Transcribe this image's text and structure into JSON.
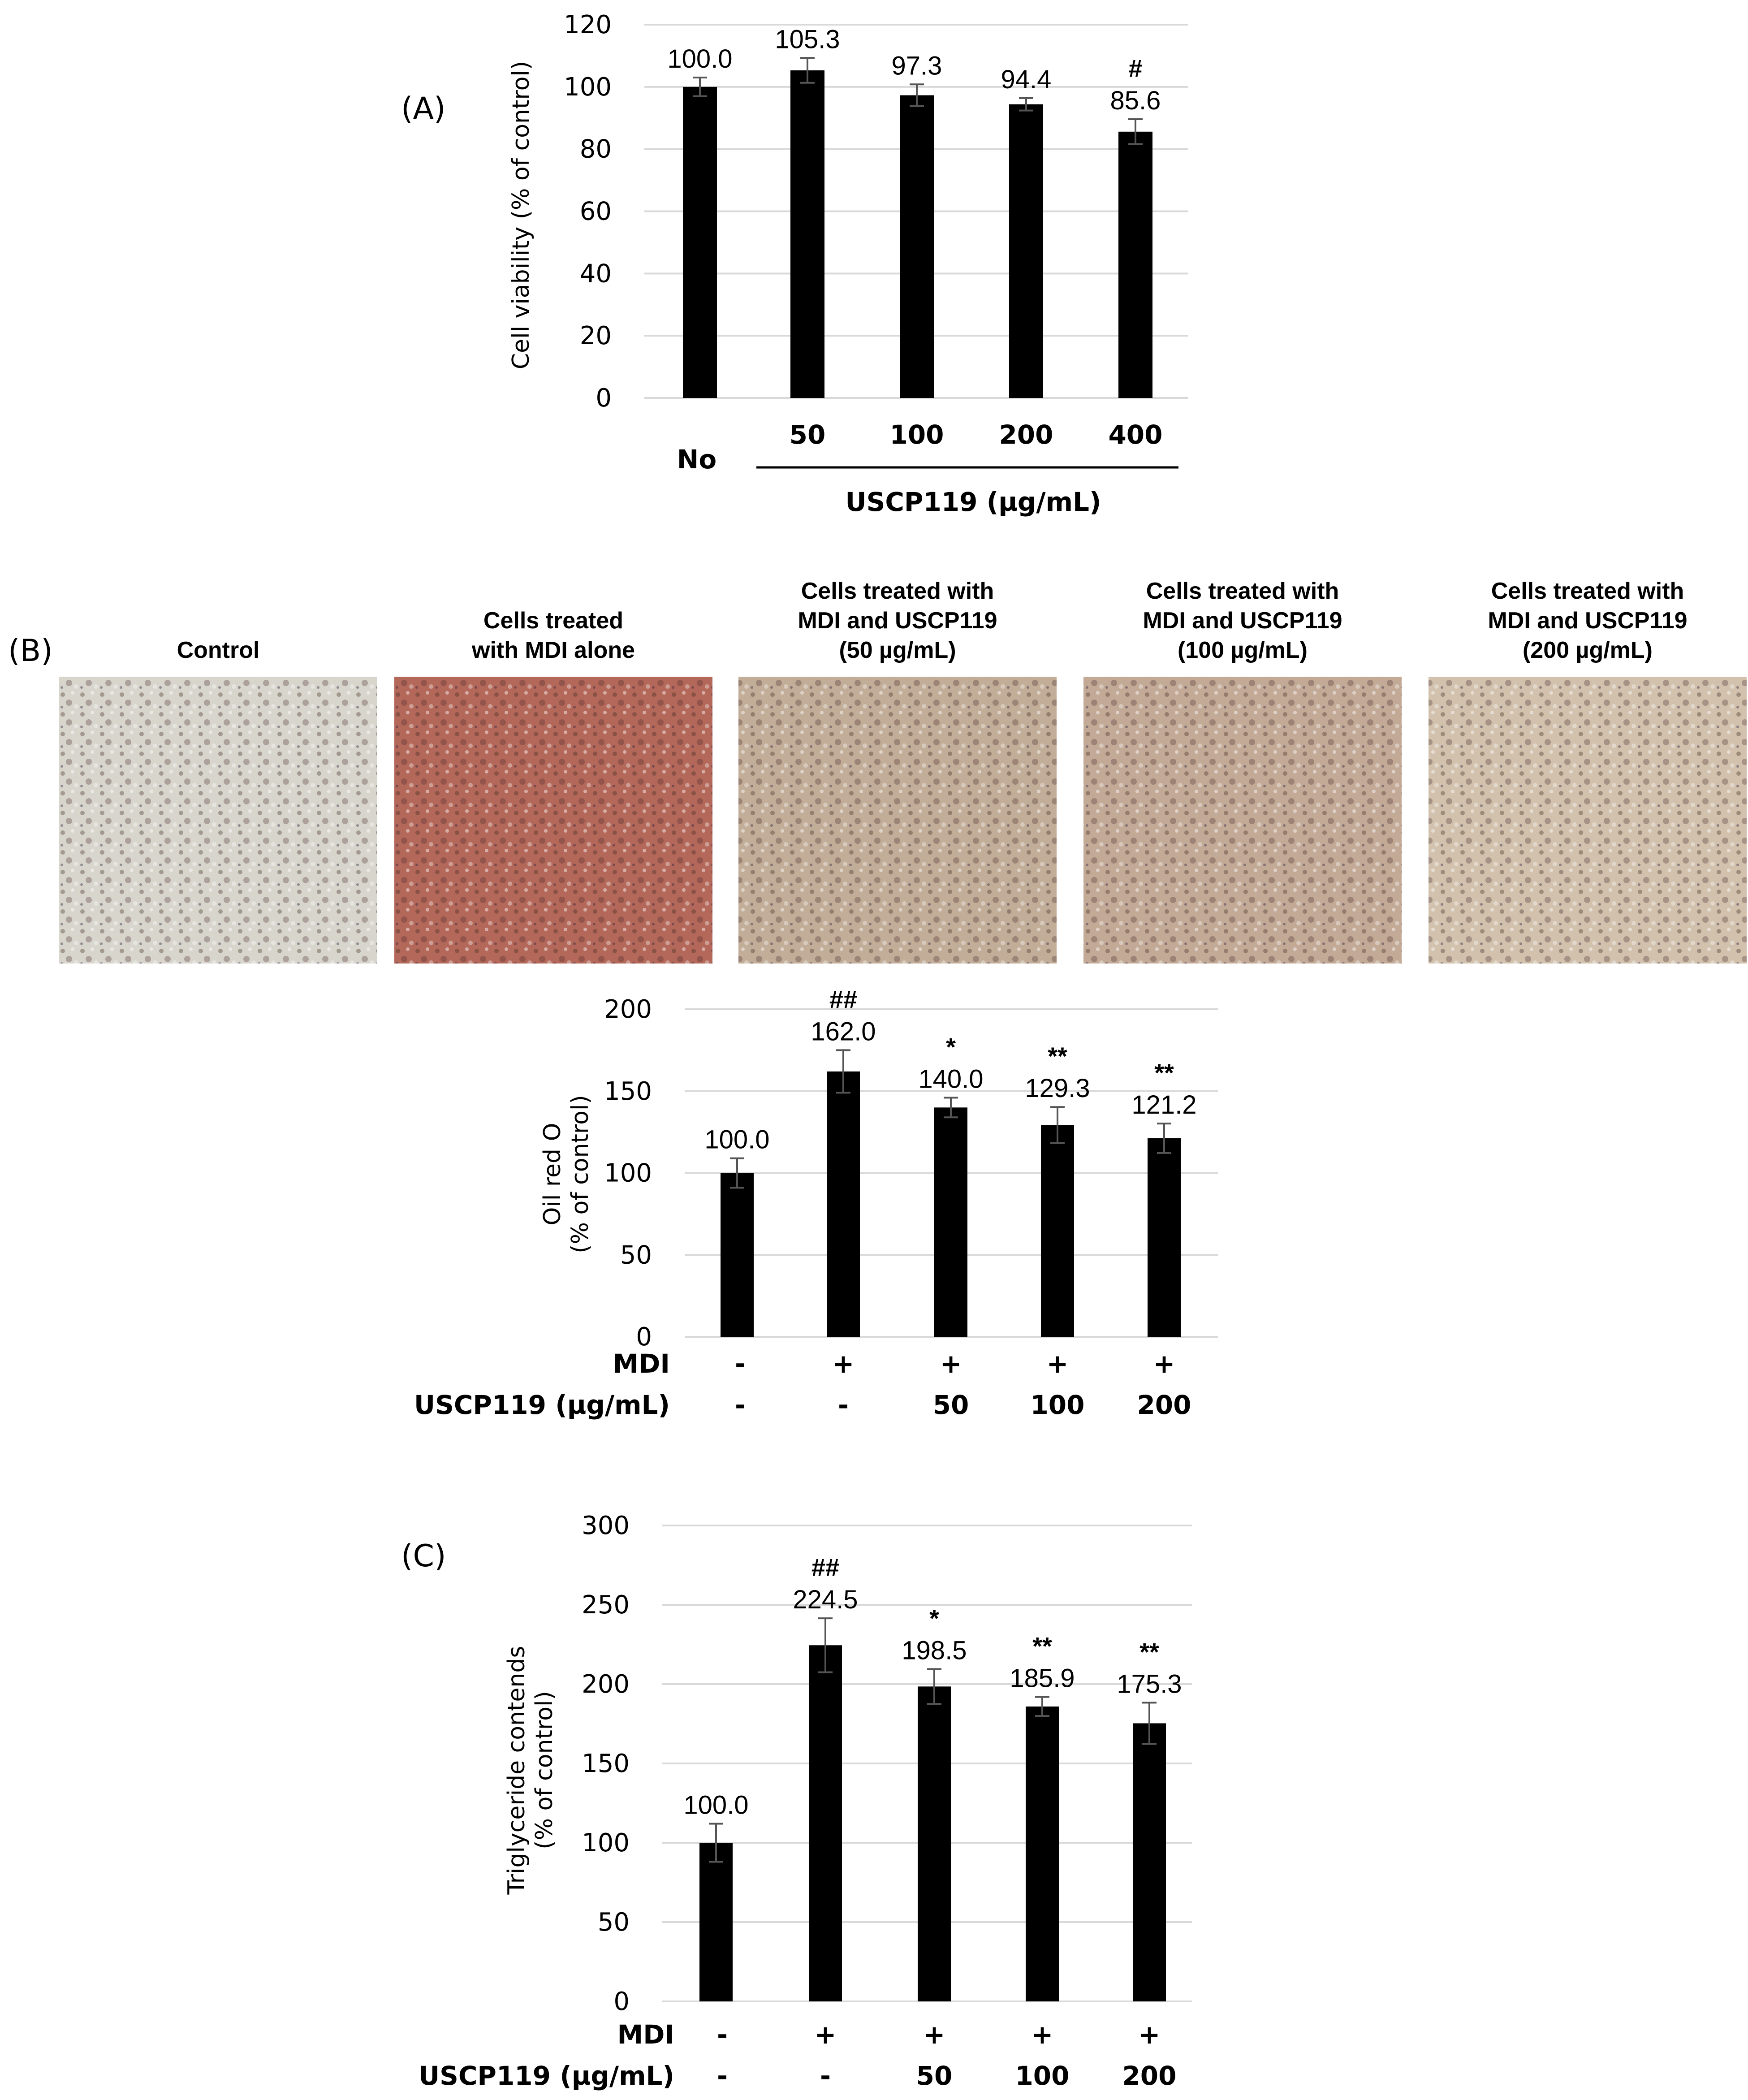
{
  "panels": {
    "A": "(A)",
    "B": "(B)",
    "C": "(C)"
  },
  "chart_data": [
    {
      "id": "A",
      "type": "bar",
      "ylabel": "Cell viability (% of control)",
      "ylim": [
        0,
        120
      ],
      "yticks": [
        0,
        20,
        40,
        60,
        80,
        100,
        120
      ],
      "grid": true,
      "categories": [
        "No",
        "50",
        "100",
        "200",
        "400"
      ],
      "values": [
        100.0,
        105.3,
        97.3,
        94.4,
        85.6
      ],
      "value_labels": [
        "100.0",
        "105.3",
        "97.3",
        "94.4",
        "85.6"
      ],
      "errors": [
        3.0,
        4.0,
        3.5,
        2.0,
        4.0
      ],
      "significance": [
        "",
        "",
        "",
        "",
        "#"
      ],
      "group_label": "USCP119 (µg/mL)"
    },
    {
      "id": "B",
      "type": "bar",
      "ylabel": [
        "Oil red O",
        "(% of control)"
      ],
      "ylim": [
        0,
        200
      ],
      "yticks": [
        0,
        50,
        100,
        150,
        200
      ],
      "grid": true,
      "values": [
        100.0,
        162.0,
        140.0,
        129.3,
        121.2
      ],
      "value_labels": [
        "100.0",
        "162.0",
        "140.0",
        "129.3",
        "121.2"
      ],
      "errors": [
        9.0,
        13.0,
        6.0,
        11.0,
        9.0
      ],
      "significance": [
        "",
        "##",
        "*",
        "**",
        "**"
      ],
      "row_labels": [
        "MDI",
        "USCP119 (µg/mL)"
      ],
      "rows": [
        [
          "-",
          "+",
          "+",
          "+",
          "+"
        ],
        [
          "-",
          "-",
          "50",
          "100",
          "200"
        ]
      ]
    },
    {
      "id": "C",
      "type": "bar",
      "ylabel": [
        "Triglyceride contends",
        "(% of control)"
      ],
      "ylim": [
        0,
        300
      ],
      "yticks": [
        0,
        50,
        100,
        150,
        200,
        250,
        300
      ],
      "grid": true,
      "values": [
        100.0,
        224.5,
        198.5,
        185.9,
        175.3
      ],
      "value_labels": [
        "100.0",
        "224.5",
        "198.5",
        "185.9",
        "175.3"
      ],
      "errors": [
        12.0,
        17.0,
        11.0,
        6.0,
        13.0
      ],
      "significance": [
        "",
        "##",
        "*",
        "**",
        "**"
      ],
      "row_labels": [
        "MDI",
        "USCP119 (µg/mL)"
      ],
      "rows": [
        [
          "-",
          "+",
          "+",
          "+",
          "+"
        ],
        [
          "-",
          "-",
          "50",
          "100",
          "200"
        ]
      ]
    }
  ],
  "photos": [
    {
      "title": [
        "Control"
      ],
      "tint": "#d8d5cd"
    },
    {
      "title": [
        "Cells treated",
        "with MDI alone"
      ],
      "tint": "#b4685a"
    },
    {
      "title": [
        "Cells treated with",
        "MDI and USCP119",
        "(50 µg/mL)"
      ],
      "tint": "#c2ad98"
    },
    {
      "title": [
        "Cells treated with",
        "MDI and USCP119",
        "(100 µg/mL)"
      ],
      "tint": "#c3aa97"
    },
    {
      "title": [
        "Cells treated with",
        "MDI and USCP119",
        "(200 µg/mL)"
      ],
      "tint": "#d1c1ad"
    }
  ]
}
